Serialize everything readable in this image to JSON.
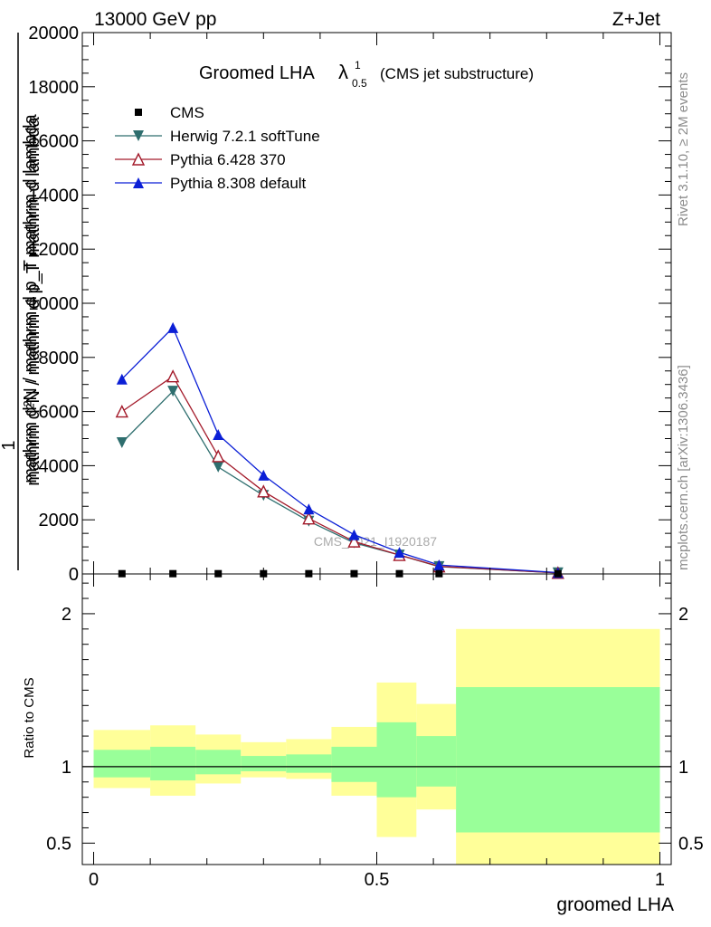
{
  "header": {
    "energy_label": "13000 GeV pp",
    "process_label": "Z+Jet"
  },
  "side": {
    "rivet_label": "Rivet 3.1.10, ≥ 2M events",
    "mcplots_label": "mcplots.cern.ch [arXiv:1306.3436]"
  },
  "chart_data": [
    {
      "type": "line",
      "title_main": "Groomed LHA",
      "title_lambda": "λ",
      "title_sup": "1",
      "title_sub": "0.5",
      "title_suffix": "(CMS jet substructure)",
      "watermark": "CMS_2021_I1920187",
      "ylabel_num": "1",
      "ylabel_den": "mathrm d²N / mathrm d p_T mathrm d lambda",
      "ylabel_over": "mathrm d²N / mathrm d p_T mathrm d lambda",
      "ylim": [
        0,
        20000
      ],
      "xlim": [
        -0.02,
        1.02
      ],
      "yticks": [
        {
          "value": 0,
          "label": "0"
        },
        {
          "value": 2000,
          "label": "2000"
        },
        {
          "value": 4000,
          "label": "4000"
        },
        {
          "value": 6000,
          "label": "6000"
        },
        {
          "value": 8000,
          "label": "8000"
        },
        {
          "value": 10000,
          "label": "10000"
        },
        {
          "value": 12000,
          "label": "12000"
        },
        {
          "value": 14000,
          "label": "14000"
        },
        {
          "value": 16000,
          "label": "16000"
        },
        {
          "value": 18000,
          "label": "18000"
        },
        {
          "value": 20000,
          "label": "20000"
        }
      ],
      "legend_position": "top-left",
      "colors": {
        "cms": "#000000",
        "herwig": "#2e6e6e",
        "pythia6": "#a31a2a",
        "pythia8": "#0b1fd6"
      },
      "series": [
        {
          "name": "CMS",
          "marker": "square",
          "x": [
            0.05,
            0.14,
            0.22,
            0.3,
            0.38,
            0.46,
            0.54,
            0.61,
            0.82
          ],
          "values": [
            10,
            10,
            10,
            10,
            10,
            10,
            10,
            10,
            10
          ]
        },
        {
          "name": "Herwig 7.2.1 softTune",
          "marker": "triangle-down",
          "x": [
            0.05,
            0.14,
            0.22,
            0.3,
            0.38,
            0.46,
            0.54,
            0.61,
            0.82
          ],
          "values": [
            4850,
            6750,
            3950,
            2900,
            1950,
            1150,
            700,
            270,
            40
          ]
        },
        {
          "name": "Pythia 6.428 370",
          "marker": "triangle-up-open",
          "x": [
            0.05,
            0.14,
            0.22,
            0.3,
            0.38,
            0.46,
            0.54,
            0.61,
            0.82
          ],
          "values": [
            6000,
            7300,
            4350,
            3050,
            2050,
            1200,
            700,
            280,
            40
          ]
        },
        {
          "name": "Pythia 8.308 default",
          "marker": "triangle-up",
          "x": [
            0.05,
            0.14,
            0.22,
            0.3,
            0.38,
            0.46,
            0.54,
            0.61,
            0.82
          ],
          "values": [
            7200,
            9100,
            5150,
            3650,
            2400,
            1450,
            800,
            330,
            50
          ]
        }
      ]
    },
    {
      "type": "area",
      "ylabel": "Ratio to CMS",
      "xlabel": "groomed LHA",
      "ylim": [
        0.36,
        2.26
      ],
      "xlim": [
        -0.02,
        1.02
      ],
      "yticks": [
        {
          "value": 0.5,
          "label": "0.5"
        },
        {
          "value": 1,
          "label": "1"
        },
        {
          "value": 2,
          "label": "2"
        }
      ],
      "xticks": [
        {
          "value": 0,
          "label": "0"
        },
        {
          "value": 0.5,
          "label": "0.5"
        },
        {
          "value": 1,
          "label": "1"
        }
      ],
      "colors": {
        "stat_band": "#99ff99",
        "total_band": "#ffff99",
        "ref_line": "#000000"
      },
      "bins": [
        {
          "x0": 0.0,
          "x1": 0.1,
          "outer": [
            0.86,
            1.24
          ],
          "inner": [
            0.93,
            1.11
          ]
        },
        {
          "x0": 0.1,
          "x1": 0.18,
          "outer": [
            0.81,
            1.27
          ],
          "inner": [
            0.91,
            1.13
          ]
        },
        {
          "x0": 0.18,
          "x1": 0.26,
          "outer": [
            0.89,
            1.21
          ],
          "inner": [
            0.95,
            1.11
          ]
        },
        {
          "x0": 0.26,
          "x1": 0.34,
          "outer": [
            0.93,
            1.16
          ],
          "inner": [
            0.97,
            1.07
          ]
        },
        {
          "x0": 0.34,
          "x1": 0.42,
          "outer": [
            0.92,
            1.18
          ],
          "inner": [
            0.96,
            1.08
          ]
        },
        {
          "x0": 0.42,
          "x1": 0.5,
          "outer": [
            0.81,
            1.26
          ],
          "inner": [
            0.9,
            1.13
          ]
        },
        {
          "x0": 0.5,
          "x1": 0.57,
          "outer": [
            0.54,
            1.55
          ],
          "inner": [
            0.8,
            1.29
          ]
        },
        {
          "x0": 0.57,
          "x1": 0.64,
          "outer": [
            0.72,
            1.41
          ],
          "inner": [
            0.87,
            1.2
          ]
        },
        {
          "x0": 0.64,
          "x1": 1.0,
          "outer": [
            0.36,
            1.9
          ],
          "inner": [
            0.57,
            1.52
          ]
        }
      ],
      "ref_value": 1.0
    }
  ]
}
